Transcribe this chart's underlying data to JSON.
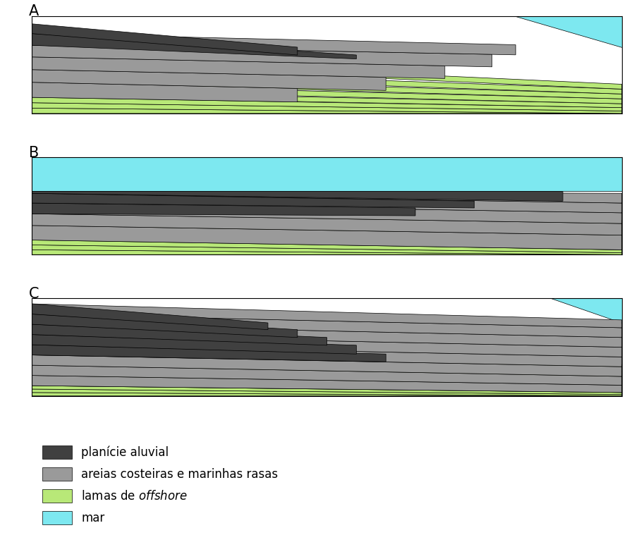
{
  "colors": {
    "alluvial": "#404040",
    "sand": "#9a9a9a",
    "offshore_mud": "#b8e878",
    "sea": "#7de8f0",
    "background": "#ffffff"
  },
  "legend": [
    {
      "color": "#404040",
      "label": "planície aluvial",
      "italic_word": null
    },
    {
      "color": "#9a9a9a",
      "label": "areias costeiras e marinhas rasas",
      "italic_word": null
    },
    {
      "color": "#b8e878",
      "label": "lamas de offshore",
      "italic_word": "offshore"
    },
    {
      "color": "#7de8f0",
      "label": "mar",
      "italic_word": null
    }
  ],
  "panel_labels": [
    "A",
    "B",
    "C"
  ],
  "legend_fontsize": 12
}
